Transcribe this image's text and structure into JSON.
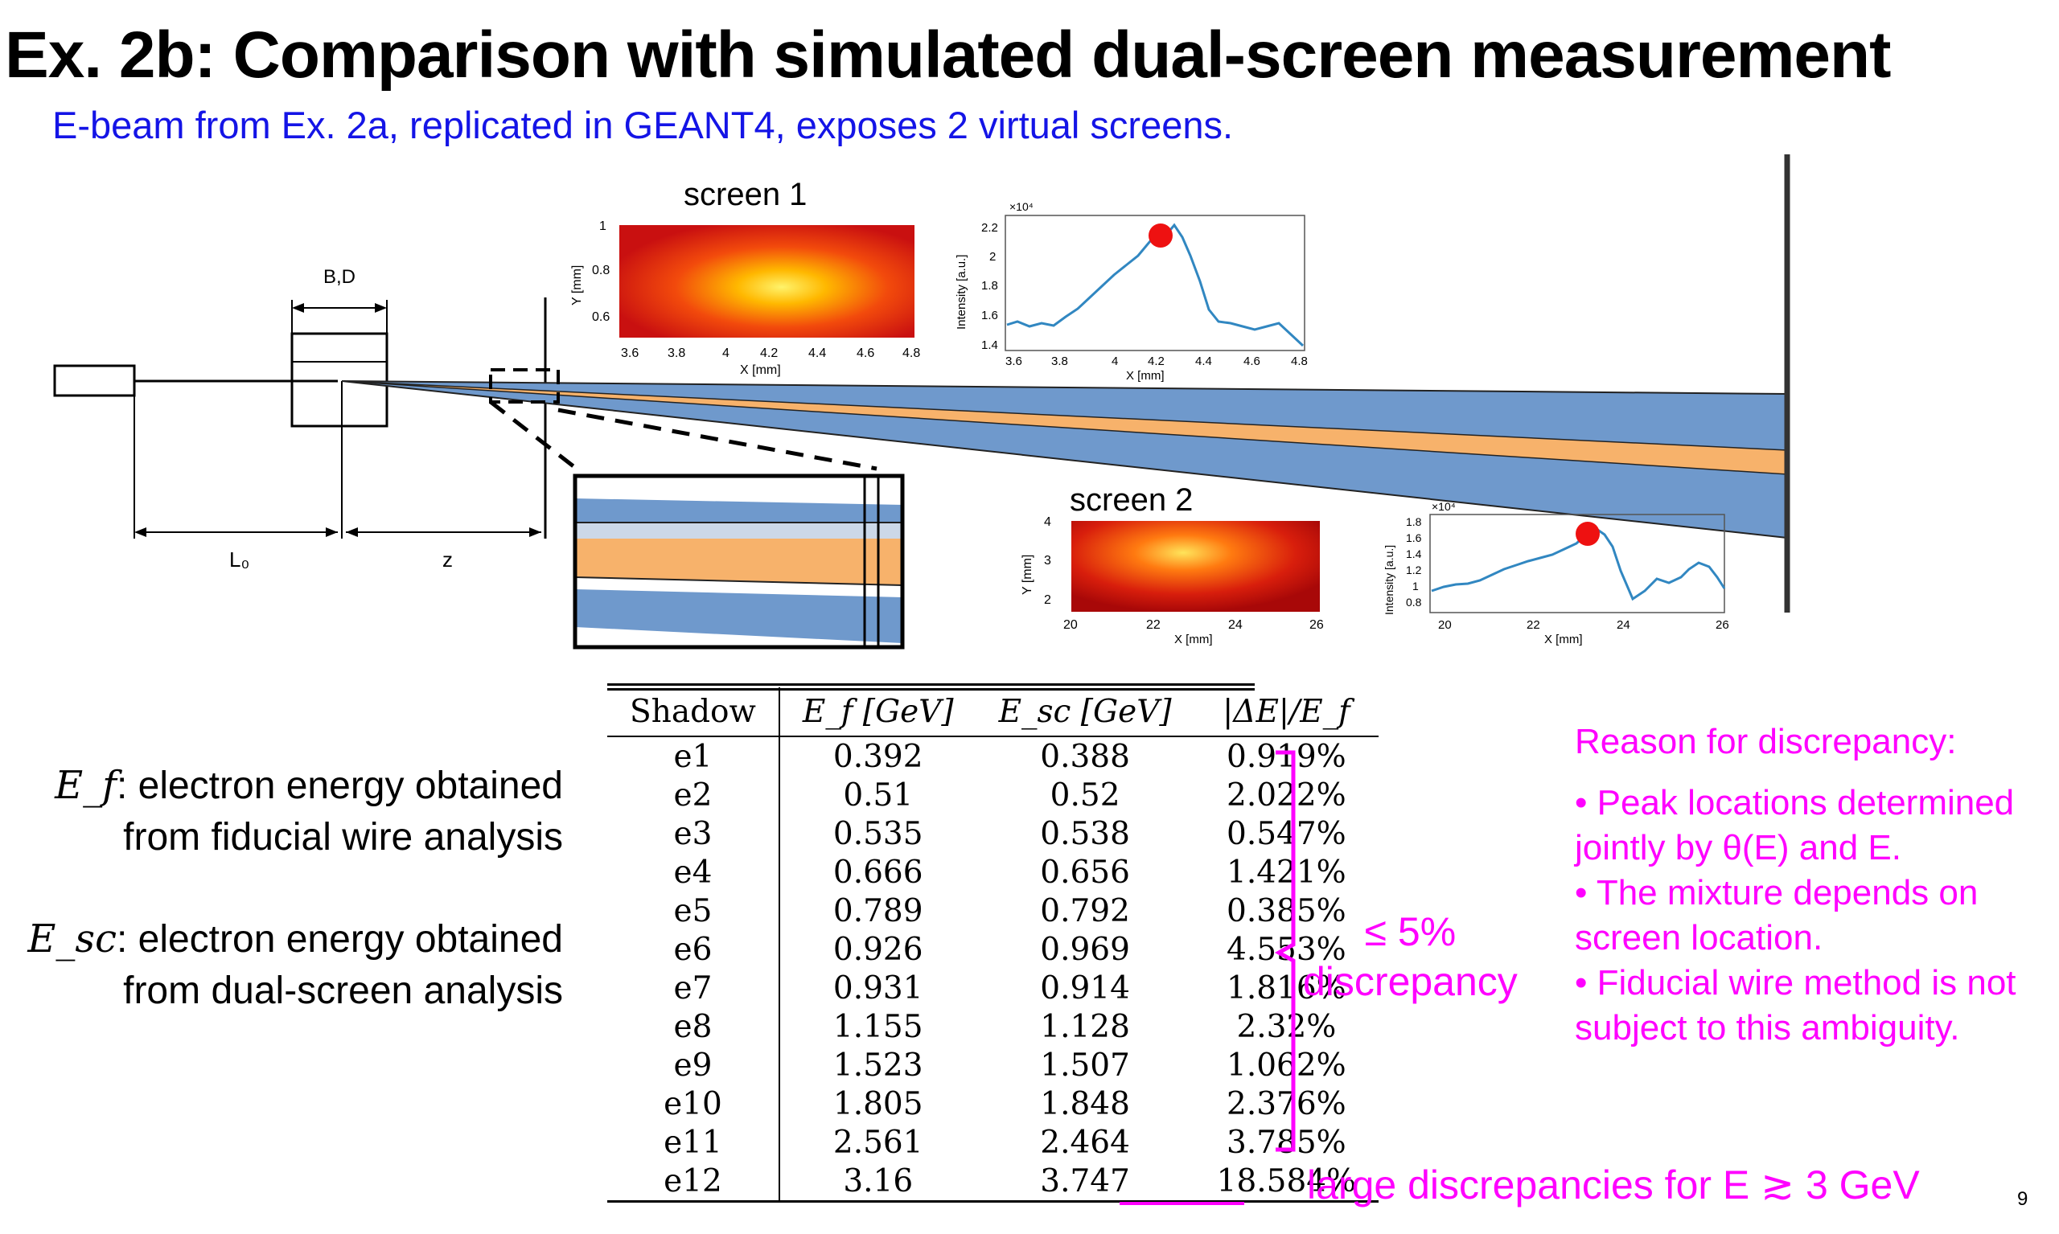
{
  "slide": {
    "title": "Ex. 2b:  Comparison with simulated dual-screen measurement",
    "subtitle": "E-beam from Ex. 2a, replicated in GEANT4, exposes 2 virtual screens.",
    "page_number": "9"
  },
  "diagram": {
    "label_bd": "B,D",
    "label_l0": "L₀",
    "label_z": "z",
    "screen1": {
      "title": "screen 1",
      "ylabel": "Y [mm]",
      "xlabel": "X [mm]",
      "yticks": [
        "1",
        "0.8",
        "0.6"
      ],
      "xticks": [
        "3.6",
        "3.8",
        "4",
        "4.2",
        "4.4",
        "4.6",
        "4.8"
      ]
    },
    "profile1": {
      "ylabel": "Intensity [a.u.]",
      "xlabel": "X [mm]",
      "multiplier": "×10⁴",
      "yticks": [
        "2.2",
        "2",
        "1.8",
        "1.6",
        "1.4"
      ],
      "xticks": [
        "3.6",
        "3.8",
        "4",
        "4.2",
        "4.4",
        "4.6",
        "4.8"
      ]
    },
    "screen2": {
      "title": "screen 2",
      "ylabel": "Y [mm]",
      "xlabel": "X [mm]",
      "yticks": [
        "4",
        "3",
        "2"
      ],
      "xticks": [
        "20",
        "22",
        "24",
        "26"
      ]
    },
    "profile2": {
      "ylabel": "Intensity [a.u.]",
      "xlabel": "X [mm]",
      "multiplier": "×10⁴",
      "yticks": [
        "1.8",
        "1.6",
        "1.4",
        "1.2",
        "1",
        "0.8"
      ],
      "xticks": [
        "20",
        "22",
        "24",
        "26"
      ]
    },
    "colors": {
      "beam": "#6f99cc",
      "core": "#f7b26b",
      "peak": "#ee1111",
      "curve": "#3187c1"
    }
  },
  "definitions": {
    "ef_symbol": "E_f",
    "ef_line1": ": electron energy obtained",
    "ef_line2": "from fiducial wire analysis",
    "esc_symbol": "E_sc",
    "esc_line1": ": electron energy obtained",
    "esc_line2": "from dual-screen analysis"
  },
  "table": {
    "headers": [
      "Shadow",
      "E_f [GeV]",
      "E_sc [GeV]",
      "|ΔE|/E_f"
    ],
    "rows": [
      [
        "e1",
        "0.392",
        "0.388",
        "0.919%"
      ],
      [
        "e2",
        "0.51",
        "0.52",
        "2.022%"
      ],
      [
        "e3",
        "0.535",
        "0.538",
        "0.547%"
      ],
      [
        "e4",
        "0.666",
        "0.656",
        "1.421%"
      ],
      [
        "e5",
        "0.789",
        "0.792",
        "0.385%"
      ],
      [
        "e6",
        "0.926",
        "0.969",
        "4.553%"
      ],
      [
        "e7",
        "0.931",
        "0.914",
        "1.816%"
      ],
      [
        "e8",
        "1.155",
        "1.128",
        "2.32%"
      ],
      [
        "e9",
        "1.523",
        "1.507",
        "1.062%"
      ],
      [
        "e10",
        "1.805",
        "1.848",
        "2.376%"
      ],
      [
        "e11",
        "2.561",
        "2.464",
        "3.785%"
      ],
      [
        "e12",
        "3.16",
        "3.747",
        "18.584%"
      ]
    ]
  },
  "annotations": {
    "brace_line1": "≤ 5%",
    "brace_line2": "discrepancy",
    "large_discrepancy": "large discrepancies for E ≳ 3 GeV",
    "highlight_color": "#ff00ff"
  },
  "reason": {
    "heading": "Reason for discrepancy:",
    "bullets": [
      "• Peak locations determined jointly by θ(E) and E.",
      "• The mixture depends on screen location.",
      "• Fiducial wire method is not subject to this ambiguity."
    ]
  }
}
